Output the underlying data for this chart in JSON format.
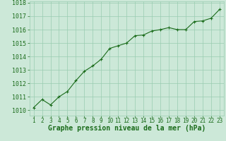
{
  "x": [
    1,
    2,
    3,
    4,
    5,
    6,
    7,
    8,
    9,
    10,
    11,
    12,
    13,
    14,
    15,
    16,
    17,
    18,
    19,
    20,
    21,
    22,
    23
  ],
  "y": [
    1010.2,
    1010.8,
    1010.4,
    1011.0,
    1011.4,
    1012.2,
    1012.9,
    1013.3,
    1013.8,
    1014.6,
    1014.8,
    1015.0,
    1015.55,
    1015.6,
    1015.9,
    1016.0,
    1016.15,
    1016.0,
    1016.0,
    1016.6,
    1016.65,
    1016.85,
    1017.5
  ],
  "line_color": "#1a6b1a",
  "marker": "+",
  "marker_size": 3,
  "marker_color": "#1a6b1a",
  "bg_color": "#cce8d8",
  "grid_color": "#99ccb0",
  "xlabel": "Graphe pression niveau de la mer (hPa)",
  "xlabel_fontsize": 7,
  "xlabel_color": "#1a6b1a",
  "ylabel_ticks": [
    1010,
    1011,
    1012,
    1013,
    1014,
    1015,
    1016,
    1017,
    1018
  ],
  "ylim": [
    1009.6,
    1018.1
  ],
  "xlim": [
    0.5,
    23.5
  ],
  "tick_color": "#1a6b1a",
  "ytick_fontsize": 6,
  "xtick_fontsize": 5.5
}
